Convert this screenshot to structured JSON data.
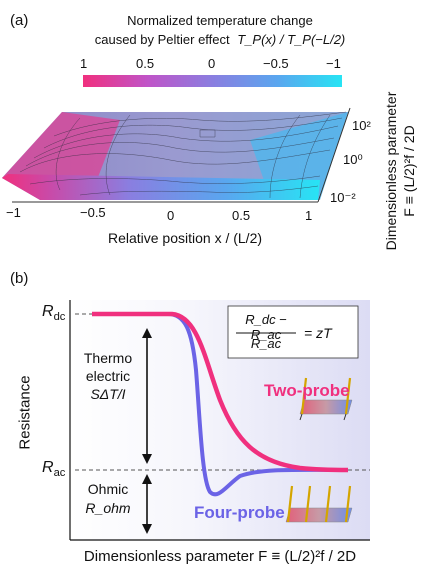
{
  "panel_a": {
    "label": "(a)",
    "colorbar": {
      "title_line1": "Normalized temperature change",
      "title_line2_prefix": "caused by Peltier effect",
      "title_formula": "T_P(x) / T_P(−L/2)",
      "ticks": [
        "1",
        "0.5",
        "0",
        "−0.5",
        "−1"
      ],
      "colors": [
        "#f0307e",
        "#c054c8",
        "#8a7ee0",
        "#5aa6ef",
        "#27e4f4"
      ]
    },
    "x_axis": {
      "label": "Relative position  x / (L/2)",
      "ticks": [
        "−1",
        "−0.5",
        "0",
        "0.5",
        "1"
      ]
    },
    "side_axis": {
      "label_line1": "Dimensionless parameter",
      "label_line2": "F  ≡ (L/2)²f / 2D",
      "ticks": [
        "10²",
        "10⁰",
        "10⁻²"
      ]
    }
  },
  "panel_b": {
    "label": "(b)",
    "y_axis_label": "Resistance",
    "x_axis_label": "Dimensionless parameter F  ≡ (L/2)²f / 2D",
    "r_dc": "R",
    "r_dc_sub": "dc",
    "r_ac": "R",
    "r_ac_sub": "ac",
    "equation": {
      "numerator": "R_dc − R_ac",
      "denominator": "R_ac",
      "rhs": "=  zT"
    },
    "thermoelectric_line1": "Thermo",
    "thermoelectric_line2": "electric",
    "thermoelectric_formula": "SΔT/I",
    "ohmic_line1": "Ohmic",
    "ohmic_formula": "R_ohm",
    "two_probe_label": "Two-probe",
    "four_probe_label": "Four-probe",
    "two_probe_color": "#f0307e",
    "four_probe_color": "#6b63e6"
  }
}
